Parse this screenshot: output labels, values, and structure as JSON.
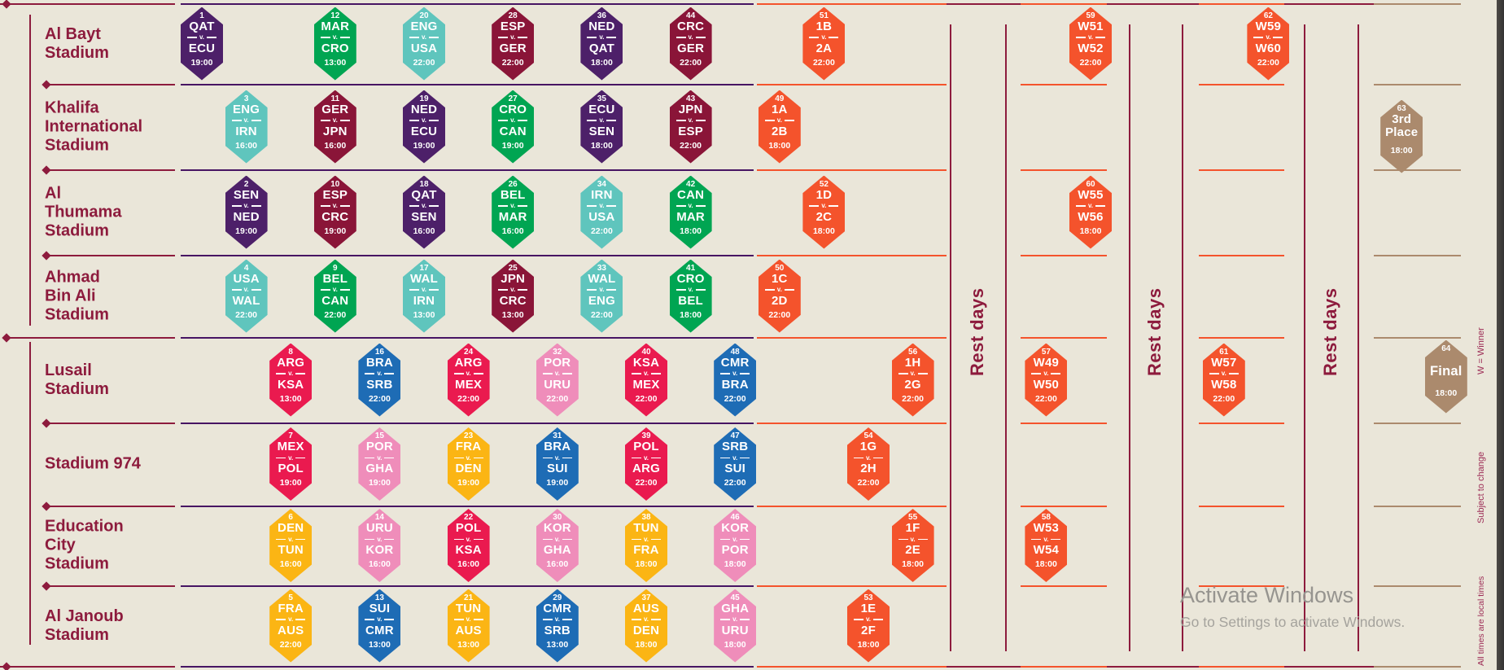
{
  "palette": {
    "background": "#eae6d9",
    "purple": "#4d2069",
    "teal": "#5fc5bd",
    "maroon": "#8a1538",
    "green": "#00a552",
    "crimson": "#ea1a4f",
    "blue": "#1e6cb5",
    "pink": "#ef8dba",
    "yellow": "#fbb514",
    "orange": "#f4532c",
    "brown": "#ab8a6d",
    "line_maroon": "#8d1b3d",
    "line_purple": "#471563",
    "watermark_gray": "#96948f"
  },
  "watermark": {
    "line1": "Activate Windows",
    "line2": "Go to Settings to activate Windows."
  },
  "chart_data": {
    "type": "table",
    "x_unit": "match-day column index (0 = first column, one column per tournament day)",
    "legend": {
      "rest_days": "Rest days",
      "w_winner": "W = Winner",
      "subject_to_change": "Subject to change",
      "local_times": "All times are local times"
    },
    "rest_band_count": 3,
    "rows": [
      {
        "stadium": [
          "Al Bayt",
          "Stadium"
        ],
        "matches": [
          {
            "num": 1,
            "top": "QAT",
            "bottom": "ECU",
            "time": "19:00",
            "color": "purple",
            "day": 0
          },
          {
            "num": 12,
            "top": "MAR",
            "bottom": "CRO",
            "time": "13:00",
            "color": "green",
            "day": 3
          },
          {
            "num": 20,
            "top": "ENG",
            "bottom": "USA",
            "time": "22:00",
            "color": "teal",
            "day": 5
          },
          {
            "num": 28,
            "top": "ESP",
            "bottom": "GER",
            "time": "22:00",
            "color": "maroon",
            "day": 7
          },
          {
            "num": 36,
            "top": "NED",
            "bottom": "QAT",
            "time": "18:00",
            "color": "purple",
            "day": 9
          },
          {
            "num": 44,
            "top": "CRC",
            "bottom": "GER",
            "time": "22:00",
            "color": "maroon",
            "day": 11
          },
          {
            "num": 51,
            "top": "1B",
            "bottom": "2A",
            "time": "22:00",
            "color": "orange",
            "day": 14
          },
          {
            "num": 59,
            "top": "W51",
            "bottom": "W52",
            "time": "22:00",
            "color": "orange",
            "day": 20
          },
          {
            "num": 62,
            "top": "W59",
            "bottom": "W60",
            "time": "22:00",
            "color": "orange",
            "day": 24
          }
        ]
      },
      {
        "stadium": [
          "Khalifa",
          "International",
          "Stadium"
        ],
        "matches": [
          {
            "num": 3,
            "top": "ENG",
            "bottom": "IRN",
            "time": "16:00",
            "color": "teal",
            "day": 1
          },
          {
            "num": 11,
            "top": "GER",
            "bottom": "JPN",
            "time": "16:00",
            "color": "maroon",
            "day": 3
          },
          {
            "num": 19,
            "top": "NED",
            "bottom": "ECU",
            "time": "19:00",
            "color": "purple",
            "day": 5
          },
          {
            "num": 27,
            "top": "CRO",
            "bottom": "CAN",
            "time": "19:00",
            "color": "green",
            "day": 7
          },
          {
            "num": 35,
            "top": "ECU",
            "bottom": "SEN",
            "time": "18:00",
            "color": "purple",
            "day": 9
          },
          {
            "num": 43,
            "top": "JPN",
            "bottom": "ESP",
            "time": "22:00",
            "color": "maroon",
            "day": 11
          },
          {
            "num": 49,
            "top": "1A",
            "bottom": "2B",
            "time": "18:00",
            "color": "orange",
            "day": 13
          },
          {
            "num": 63,
            "top": "3rd",
            "bottom": "Place",
            "time": "18:00",
            "color": "brown",
            "day": 27
          }
        ]
      },
      {
        "stadium": [
          "Al",
          "Thumama",
          "Stadium"
        ],
        "matches": [
          {
            "num": 2,
            "top": "SEN",
            "bottom": "NED",
            "time": "19:00",
            "color": "purple",
            "day": 1
          },
          {
            "num": 10,
            "top": "ESP",
            "bottom": "CRC",
            "time": "19:00",
            "color": "maroon",
            "day": 3
          },
          {
            "num": 18,
            "top": "QAT",
            "bottom": "SEN",
            "time": "16:00",
            "color": "purple",
            "day": 5
          },
          {
            "num": 26,
            "top": "BEL",
            "bottom": "MAR",
            "time": "16:00",
            "color": "green",
            "day": 7
          },
          {
            "num": 34,
            "top": "IRN",
            "bottom": "USA",
            "time": "22:00",
            "color": "teal",
            "day": 9
          },
          {
            "num": 42,
            "top": "CAN",
            "bottom": "MAR",
            "time": "18:00",
            "color": "green",
            "day": 11
          },
          {
            "num": 52,
            "top": "1D",
            "bottom": "2C",
            "time": "18:00",
            "color": "orange",
            "day": 14
          },
          {
            "num": 60,
            "top": "W55",
            "bottom": "W56",
            "time": "18:00",
            "color": "orange",
            "day": 20
          }
        ]
      },
      {
        "stadium": [
          "Ahmad",
          "Bin Ali",
          "Stadium"
        ],
        "matches": [
          {
            "num": 4,
            "top": "USA",
            "bottom": "WAL",
            "time": "22:00",
            "color": "teal",
            "day": 1
          },
          {
            "num": 9,
            "top": "BEL",
            "bottom": "CAN",
            "time": "22:00",
            "color": "green",
            "day": 3
          },
          {
            "num": 17,
            "top": "WAL",
            "bottom": "IRN",
            "time": "13:00",
            "color": "teal",
            "day": 5
          },
          {
            "num": 25,
            "top": "JPN",
            "bottom": "CRC",
            "time": "13:00",
            "color": "maroon",
            "day": 7
          },
          {
            "num": 33,
            "top": "WAL",
            "bottom": "ENG",
            "time": "22:00",
            "color": "teal",
            "day": 9
          },
          {
            "num": 41,
            "top": "CRO",
            "bottom": "BEL",
            "time": "18:00",
            "color": "green",
            "day": 11
          },
          {
            "num": 50,
            "top": "1C",
            "bottom": "2D",
            "time": "22:00",
            "color": "orange",
            "day": 13
          }
        ]
      },
      {
        "stadium": [
          "Lusail",
          "Stadium"
        ],
        "matches": [
          {
            "num": 8,
            "top": "ARG",
            "bottom": "KSA",
            "time": "13:00",
            "color": "crimson",
            "day": 2
          },
          {
            "num": 16,
            "top": "BRA",
            "bottom": "SRB",
            "time": "22:00",
            "color": "blue",
            "day": 4
          },
          {
            "num": 24,
            "top": "ARG",
            "bottom": "MEX",
            "time": "22:00",
            "color": "crimson",
            "day": 6
          },
          {
            "num": 32,
            "top": "POR",
            "bottom": "URU",
            "time": "22:00",
            "color": "pink",
            "day": 8
          },
          {
            "num": 40,
            "top": "KSA",
            "bottom": "MEX",
            "time": "22:00",
            "color": "crimson",
            "day": 10
          },
          {
            "num": 48,
            "top": "CMR",
            "bottom": "BRA",
            "time": "22:00",
            "color": "blue",
            "day": 12
          },
          {
            "num": 56,
            "top": "1H",
            "bottom": "2G",
            "time": "22:00",
            "color": "orange",
            "day": 16
          },
          {
            "num": 57,
            "top": "W49",
            "bottom": "W50",
            "time": "22:00",
            "color": "orange",
            "day": 19
          },
          {
            "num": 61,
            "top": "W57",
            "bottom": "W58",
            "time": "22:00",
            "color": "orange",
            "day": 23
          },
          {
            "num": 64,
            "top": "Final",
            "bottom": "",
            "time": "18:00",
            "color": "brown",
            "day": 28
          }
        ]
      },
      {
        "stadium": [
          "Stadium 974"
        ],
        "matches": [
          {
            "num": 7,
            "top": "MEX",
            "bottom": "POL",
            "time": "19:00",
            "color": "crimson",
            "day": 2
          },
          {
            "num": 15,
            "top": "POR",
            "bottom": "GHA",
            "time": "19:00",
            "color": "pink",
            "day": 4
          },
          {
            "num": 23,
            "top": "FRA",
            "bottom": "DEN",
            "time": "19:00",
            "color": "yellow",
            "day": 6
          },
          {
            "num": 31,
            "top": "BRA",
            "bottom": "SUI",
            "time": "19:00",
            "color": "blue",
            "day": 8
          },
          {
            "num": 39,
            "top": "POL",
            "bottom": "ARG",
            "time": "22:00",
            "color": "crimson",
            "day": 10
          },
          {
            "num": 47,
            "top": "SRB",
            "bottom": "SUI",
            "time": "22:00",
            "color": "blue",
            "day": 12
          },
          {
            "num": 54,
            "top": "1G",
            "bottom": "2H",
            "time": "22:00",
            "color": "orange",
            "day": 15
          }
        ]
      },
      {
        "stadium": [
          "Education",
          "City",
          "Stadium"
        ],
        "matches": [
          {
            "num": 6,
            "top": "DEN",
            "bottom": "TUN",
            "time": "16:00",
            "color": "yellow",
            "day": 2
          },
          {
            "num": 14,
            "top": "URU",
            "bottom": "KOR",
            "time": "16:00",
            "color": "pink",
            "day": 4
          },
          {
            "num": 22,
            "top": "POL",
            "bottom": "KSA",
            "time": "16:00",
            "color": "crimson",
            "day": 6
          },
          {
            "num": 30,
            "top": "KOR",
            "bottom": "GHA",
            "time": "16:00",
            "color": "pink",
            "day": 8
          },
          {
            "num": 38,
            "top": "TUN",
            "bottom": "FRA",
            "time": "18:00",
            "color": "yellow",
            "day": 10
          },
          {
            "num": 46,
            "top": "KOR",
            "bottom": "POR",
            "time": "18:00",
            "color": "pink",
            "day": 12
          },
          {
            "num": 55,
            "top": "1F",
            "bottom": "2E",
            "time": "18:00",
            "color": "orange",
            "day": 16
          },
          {
            "num": 58,
            "top": "W53",
            "bottom": "W54",
            "time": "18:00",
            "color": "orange",
            "day": 19
          }
        ]
      },
      {
        "stadium": [
          "Al Janoub",
          "Stadium"
        ],
        "matches": [
          {
            "num": 5,
            "top": "FRA",
            "bottom": "AUS",
            "time": "22:00",
            "color": "yellow",
            "day": 2
          },
          {
            "num": 13,
            "top": "SUI",
            "bottom": "CMR",
            "time": "13:00",
            "color": "blue",
            "day": 4
          },
          {
            "num": 21,
            "top": "TUN",
            "bottom": "AUS",
            "time": "13:00",
            "color": "yellow",
            "day": 6
          },
          {
            "num": 29,
            "top": "CMR",
            "bottom": "SRB",
            "time": "13:00",
            "color": "blue",
            "day": 8
          },
          {
            "num": 37,
            "top": "AUS",
            "bottom": "DEN",
            "time": "18:00",
            "color": "yellow",
            "day": 10
          },
          {
            "num": 45,
            "top": "GHA",
            "bottom": "URU",
            "time": "18:00",
            "color": "pink",
            "day": 12
          },
          {
            "num": 53,
            "top": "1E",
            "bottom": "2F",
            "time": "18:00",
            "color": "orange",
            "day": 15
          }
        ]
      }
    ]
  }
}
